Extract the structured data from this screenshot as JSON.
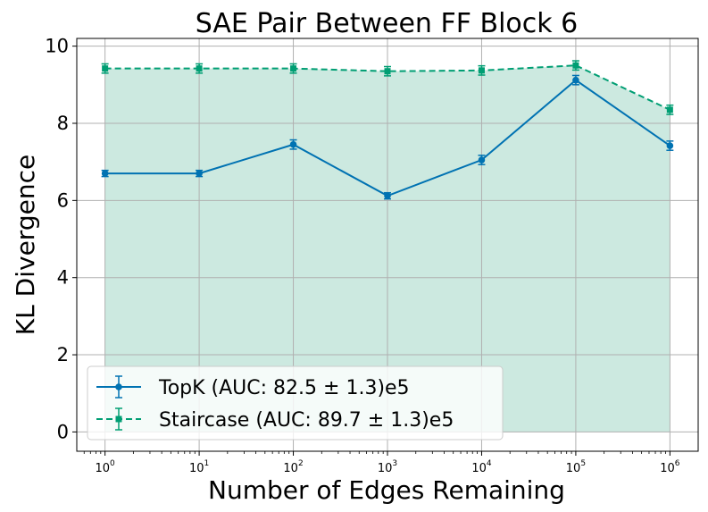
{
  "chart_data": {
    "type": "line",
    "title": "SAE Pair Between FF Block 6",
    "xlabel": "Number of Edges Remaining",
    "ylabel": "KL Divergence",
    "xscale": "log",
    "x": [
      1,
      10,
      100,
      1000,
      10000,
      100000,
      1000000
    ],
    "x_tick_labels": [
      {
        "base": "10",
        "exp": "0"
      },
      {
        "base": "10",
        "exp": "1"
      },
      {
        "base": "10",
        "exp": "2"
      },
      {
        "base": "10",
        "exp": "3"
      },
      {
        "base": "10",
        "exp": "4"
      },
      {
        "base": "10",
        "exp": "5"
      },
      {
        "base": "10",
        "exp": "6"
      }
    ],
    "y_ticks": [
      0,
      2,
      4,
      6,
      8,
      10
    ],
    "y_tick_labels": [
      "0",
      "2",
      "4",
      "6",
      "8",
      "10"
    ],
    "ylim": [
      -0.5,
      10.2
    ],
    "grid": true,
    "legend_position": "bottom-left",
    "series": [
      {
        "name": "TopK (AUC: 82.5 ± 1.3)e5",
        "values": [
          6.7,
          6.7,
          7.45,
          6.12,
          7.05,
          9.12,
          7.42
        ],
        "errors": [
          0.08,
          0.08,
          0.12,
          0.08,
          0.12,
          0.12,
          0.12
        ],
        "color": "#0072b2",
        "fill": "#a8d5d8",
        "linestyle": "solid",
        "marker": "circle"
      },
      {
        "name": "Staircase (AUC: 89.7 ± 1.3)e5",
        "values": [
          9.42,
          9.42,
          9.42,
          9.35,
          9.37,
          9.5,
          8.35
        ],
        "errors": [
          0.12,
          0.12,
          0.12,
          0.12,
          0.12,
          0.12,
          0.12
        ],
        "color": "#009e73",
        "fill": "#cce9e0",
        "linestyle": "dashed",
        "marker": "square"
      }
    ]
  }
}
